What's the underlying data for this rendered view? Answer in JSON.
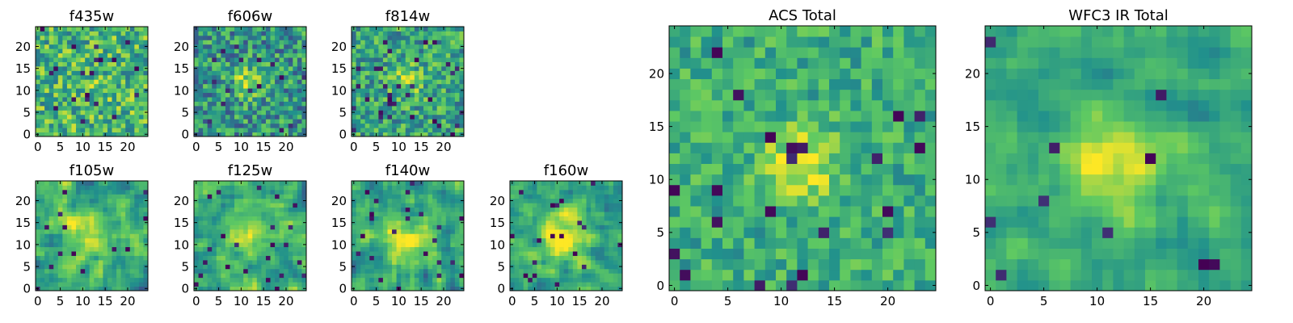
{
  "colormap": {
    "name": "viridis",
    "stops": [
      "#440154",
      "#3b528b",
      "#21918c",
      "#5ec962",
      "#fde725"
    ]
  },
  "chart_data": [
    {
      "type": "heatmap",
      "title": "f435w",
      "nx": 25,
      "ny": 25,
      "origin": "lower",
      "xlim": [
        -0.5,
        24.5
      ],
      "ylim": [
        -0.5,
        24.5
      ],
      "xticks": [
        0,
        5,
        10,
        15,
        20
      ],
      "yticks": [
        0,
        5,
        10,
        15,
        20
      ],
      "xtick_labels": [
        "0",
        "5",
        "10",
        "15",
        "20"
      ],
      "ytick_labels": [
        "0",
        "5",
        "10",
        "15",
        "20"
      ],
      "pattern": {
        "seed": 11,
        "mean": 0.66,
        "noise": 0.55,
        "smooth": 0,
        "bump": {
          "x": 12,
          "y": 11,
          "r": 3,
          "amp": 0.05
        },
        "dips": 0.03
      }
    },
    {
      "type": "heatmap",
      "title": "f606w",
      "nx": 25,
      "ny": 25,
      "origin": "lower",
      "xlim": [
        -0.5,
        24.5
      ],
      "ylim": [
        -0.5,
        24.5
      ],
      "xticks": [
        0,
        5,
        10,
        15,
        20
      ],
      "yticks": [
        0,
        5,
        10,
        15,
        20
      ],
      "xtick_labels": [
        "0",
        "5",
        "10",
        "15",
        "20"
      ],
      "ytick_labels": [
        "0",
        "5",
        "10",
        "15",
        "20"
      ],
      "pattern": {
        "seed": 23,
        "mean": 0.52,
        "noise": 0.55,
        "smooth": 0,
        "bump": {
          "x": 12,
          "y": 12,
          "r": 2.5,
          "amp": 0.35
        },
        "dips": 0.03
      }
    },
    {
      "type": "heatmap",
      "title": "f814w",
      "nx": 25,
      "ny": 25,
      "origin": "lower",
      "xlim": [
        -0.5,
        24.5
      ],
      "ylim": [
        -0.5,
        24.5
      ],
      "xticks": [
        0,
        5,
        10,
        15,
        20
      ],
      "yticks": [
        0,
        5,
        10,
        15,
        20
      ],
      "xtick_labels": [
        "0",
        "5",
        "10",
        "15",
        "20"
      ],
      "ytick_labels": [
        "0",
        "5",
        "10",
        "15",
        "20"
      ],
      "pattern": {
        "seed": 37,
        "mean": 0.58,
        "noise": 0.5,
        "smooth": 0,
        "bump": {
          "x": 12,
          "y": 12,
          "r": 2.5,
          "amp": 0.25
        },
        "dips": 0.05
      }
    },
    {
      "type": "heatmap",
      "title": "f105w",
      "nx": 25,
      "ny": 25,
      "origin": "lower",
      "xlim": [
        -0.5,
        24.5
      ],
      "ylim": [
        -0.5,
        24.5
      ],
      "xticks": [
        0,
        5,
        10,
        15,
        20
      ],
      "yticks": [
        0,
        5,
        10,
        15,
        20
      ],
      "xtick_labels": [
        "0",
        "5",
        "10",
        "15",
        "20"
      ],
      "ytick_labels": [
        "0",
        "5",
        "10",
        "15",
        "20"
      ],
      "pattern": {
        "seed": 41,
        "mean": 0.6,
        "noise": 0.55,
        "smooth": 1,
        "bump": {
          "x": 12,
          "y": 12,
          "r": 4,
          "amp": 0.3
        },
        "dips": 0.03
      }
    },
    {
      "type": "heatmap",
      "title": "f125w",
      "nx": 25,
      "ny": 25,
      "origin": "lower",
      "xlim": [
        -0.5,
        24.5
      ],
      "ylim": [
        -0.5,
        24.5
      ],
      "xticks": [
        0,
        5,
        10,
        15,
        20
      ],
      "yticks": [
        0,
        5,
        10,
        15,
        20
      ],
      "xtick_labels": [
        "0",
        "5",
        "10",
        "15",
        "20"
      ],
      "ytick_labels": [
        "0",
        "5",
        "10",
        "15",
        "20"
      ],
      "pattern": {
        "seed": 53,
        "mean": 0.62,
        "noise": 0.5,
        "smooth": 1,
        "bump": {
          "x": 12,
          "y": 12,
          "r": 4,
          "amp": 0.2
        },
        "dips": 0.025
      }
    },
    {
      "type": "heatmap",
      "title": "f140w",
      "nx": 25,
      "ny": 25,
      "origin": "lower",
      "xlim": [
        -0.5,
        24.5
      ],
      "ylim": [
        -0.5,
        24.5
      ],
      "xticks": [
        0,
        5,
        10,
        15,
        20
      ],
      "yticks": [
        0,
        5,
        10,
        15,
        20
      ],
      "xtick_labels": [
        "0",
        "5",
        "10",
        "15",
        "20"
      ],
      "ytick_labels": [
        "0",
        "5",
        "10",
        "15",
        "20"
      ],
      "pattern": {
        "seed": 67,
        "mean": 0.58,
        "noise": 0.55,
        "smooth": 1,
        "bump": {
          "x": 12,
          "y": 11,
          "r": 4,
          "amp": 0.3
        },
        "dips": 0.03
      }
    },
    {
      "type": "heatmap",
      "title": "f160w",
      "nx": 25,
      "ny": 25,
      "origin": "lower",
      "xlim": [
        -0.5,
        24.5
      ],
      "ylim": [
        -0.5,
        24.5
      ],
      "xticks": [
        0,
        5,
        10,
        15,
        20
      ],
      "yticks": [
        0,
        5,
        10,
        15,
        20
      ],
      "xtick_labels": [
        "0",
        "5",
        "10",
        "15",
        "20"
      ],
      "ytick_labels": [
        "0",
        "5",
        "10",
        "15",
        "20"
      ],
      "pattern": {
        "seed": 71,
        "mean": 0.6,
        "noise": 0.5,
        "smooth": 1,
        "bump": {
          "x": 12,
          "y": 12,
          "r": 3.5,
          "amp": 0.35
        },
        "dips": 0.025
      }
    },
    {
      "type": "heatmap",
      "title": "ACS Total",
      "nx": 25,
      "ny": 25,
      "origin": "lower",
      "xlim": [
        -0.5,
        24.5
      ],
      "ylim": [
        -0.5,
        24.5
      ],
      "xticks": [
        0,
        5,
        10,
        15,
        20
      ],
      "yticks": [
        0,
        5,
        10,
        15,
        20
      ],
      "xtick_labels": [
        "0",
        "5",
        "10",
        "15",
        "20"
      ],
      "ytick_labels": [
        "0",
        "5",
        "10",
        "15",
        "20"
      ],
      "pattern": {
        "seed": 83,
        "mean": 0.62,
        "noise": 0.35,
        "smooth": 0,
        "bump": {
          "x": 12,
          "y": 11.5,
          "r": 2.5,
          "amp": 0.35
        },
        "dips": 0.025
      }
    },
    {
      "type": "heatmap",
      "title": "WFC3 IR Total",
      "nx": 25,
      "ny": 25,
      "origin": "lower",
      "xlim": [
        -0.5,
        24.5
      ],
      "ylim": [
        -0.5,
        24.5
      ],
      "xticks": [
        0,
        5,
        10,
        15,
        20
      ],
      "yticks": [
        0,
        5,
        10,
        15,
        20
      ],
      "xtick_labels": [
        "0",
        "5",
        "10",
        "15",
        "20"
      ],
      "ytick_labels": [
        "0",
        "5",
        "10",
        "15",
        "20"
      ],
      "pattern": {
        "seed": 97,
        "mean": 0.6,
        "noise": 0.35,
        "smooth": 1,
        "bump": {
          "x": 12,
          "y": 12,
          "r": 3.5,
          "amp": 0.35
        },
        "dips": 0.02
      }
    }
  ]
}
